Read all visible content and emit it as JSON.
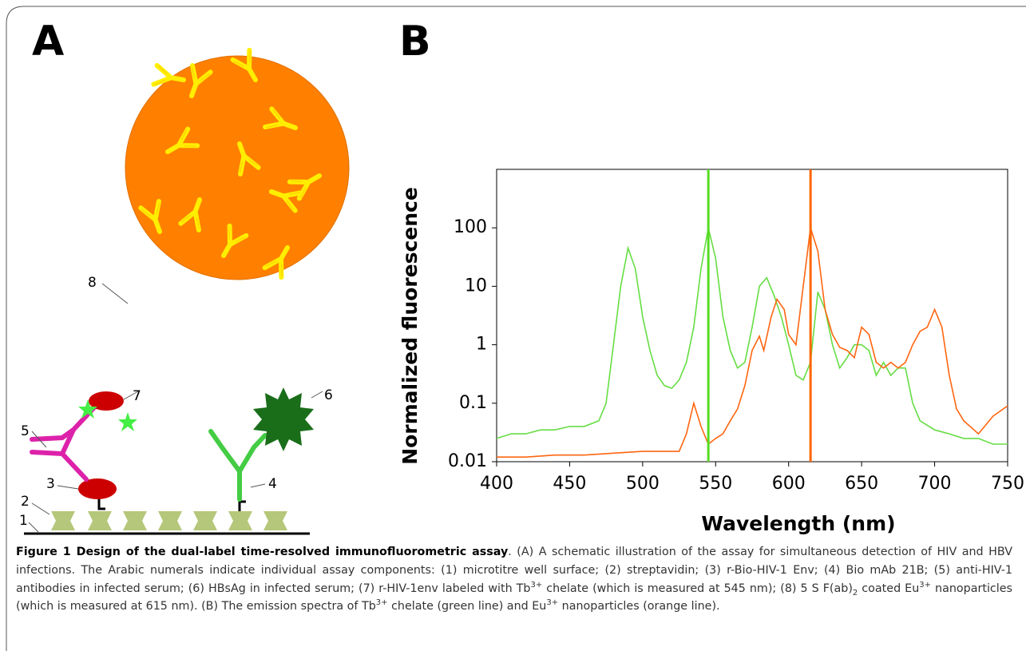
{
  "panel_labels": [
    "A",
    "B"
  ],
  "diagram": {
    "labels": [
      "1",
      "2",
      "3",
      "4",
      "5",
      "6",
      "7",
      "8"
    ]
  },
  "chart_data": {
    "type": "line",
    "x_label": "Wavelength (nm)",
    "y_label": "Normalized fluorescence",
    "xlim": [
      400,
      750
    ],
    "xticks": [
      400,
      450,
      500,
      550,
      600,
      650,
      700,
      750
    ],
    "ylim": [
      0.01,
      1000
    ],
    "yticks": [
      0.01,
      0.1,
      1,
      10,
      100
    ],
    "log_y": true,
    "markers": [
      {
        "x": 545,
        "color": "#55dd22"
      },
      {
        "x": 615,
        "color": "#ff6600"
      }
    ],
    "series": [
      {
        "color": "#66dd44",
        "x": [
          400,
          410,
          420,
          430,
          440,
          450,
          460,
          470,
          475,
          480,
          485,
          490,
          495,
          500,
          505,
          510,
          515,
          520,
          525,
          530,
          535,
          540,
          545,
          550,
          555,
          560,
          565,
          570,
          575,
          580,
          585,
          590,
          595,
          600,
          605,
          610,
          615,
          620,
          625,
          630,
          635,
          640,
          645,
          650,
          655,
          660,
          665,
          670,
          675,
          680,
          685,
          690,
          700,
          710,
          720,
          730,
          740,
          750
        ],
        "values": [
          0.025,
          0.03,
          0.03,
          0.035,
          0.035,
          0.04,
          0.04,
          0.05,
          0.1,
          1,
          10,
          45,
          20,
          3,
          0.8,
          0.3,
          0.2,
          0.18,
          0.25,
          0.5,
          2,
          20,
          100,
          30,
          3,
          0.8,
          0.4,
          0.5,
          2,
          10,
          14,
          7,
          3,
          1,
          0.3,
          0.25,
          0.5,
          8,
          4,
          1,
          0.4,
          0.6,
          1,
          1,
          0.8,
          0.3,
          0.5,
          0.3,
          0.4,
          0.4,
          0.1,
          0.05,
          0.035,
          0.03,
          0.025,
          0.025,
          0.02,
          0.02
        ]
      },
      {
        "color": "#ff6611",
        "x": [
          400,
          420,
          440,
          460,
          480,
          500,
          520,
          525,
          530,
          535,
          540,
          545,
          550,
          555,
          560,
          565,
          570,
          575,
          580,
          583,
          588,
          592,
          597,
          600,
          605,
          610,
          615,
          620,
          625,
          630,
          635,
          640,
          645,
          650,
          655,
          660,
          665,
          670,
          675,
          680,
          685,
          690,
          695,
          700,
          705,
          710,
          715,
          720,
          730,
          740,
          750
        ],
        "values": [
          0.012,
          0.012,
          0.013,
          0.013,
          0.014,
          0.015,
          0.015,
          0.015,
          0.03,
          0.1,
          0.04,
          0.02,
          0.025,
          0.03,
          0.05,
          0.08,
          0.2,
          0.8,
          1.4,
          0.8,
          3,
          6,
          4,
          1.5,
          1,
          10,
          100,
          40,
          4,
          1.5,
          0.9,
          0.8,
          0.6,
          2,
          1.5,
          0.5,
          0.4,
          0.5,
          0.4,
          0.5,
          1,
          1.7,
          2,
          4,
          2,
          0.3,
          0.08,
          0.05,
          0.03,
          0.06,
          0.09
        ]
      }
    ]
  },
  "caption": [
    {
      "t": "Figure 1 Design of the dual-label time-resolved immunofluorometric assay",
      "f": "b"
    },
    {
      "t": ". (A) A schematic illustration of the assay for simultaneous detection of HIV and HBV infections. The Arabic numerals indicate individual assay components: (1) microtitre well surface; (2) streptavidin; (3) r-Bio-HIV-1 Env; (4) Bio mAb 21B; (5) anti-HIV-1 antibodies in infected serum; (6) HBsAg in infected serum; (7) r-HIV-1env labeled with Tb"
    },
    {
      "t": "3+",
      "f": "sup"
    },
    {
      "t": " chelate (which is measured at 545 nm); (8) 5 S F(ab)"
    },
    {
      "t": "2",
      "f": "sub"
    },
    {
      "t": " coated Eu"
    },
    {
      "t": "3+",
      "f": "sup"
    },
    {
      "t": " nanoparticles (which is measured at 615 nm). (B) The emission spectra of Tb"
    },
    {
      "t": "3+",
      "f": "sup"
    },
    {
      "t": " chelate (green line) and Eu"
    },
    {
      "t": "3+",
      "f": "sup"
    },
    {
      "t": " nanoparticles (orange line)."
    }
  ]
}
